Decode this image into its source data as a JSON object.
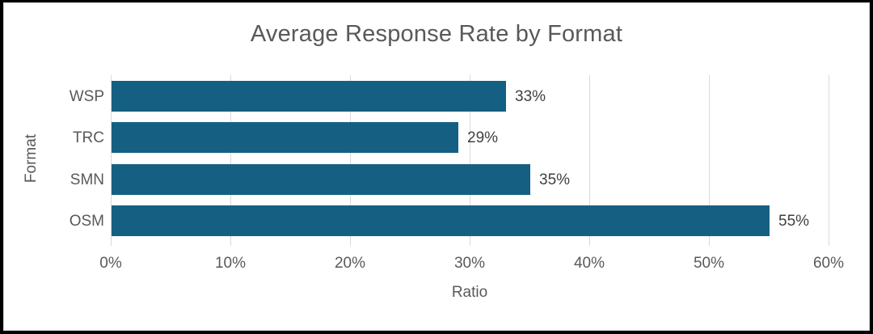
{
  "chart_data": {
    "type": "bar",
    "orientation": "horizontal",
    "title": "Average Response Rate by Format",
    "xlabel": "Ratio",
    "ylabel": "Format",
    "categories": [
      "WSP",
      "TRC",
      "SMN",
      "OSM"
    ],
    "values": [
      33,
      29,
      35,
      55
    ],
    "value_labels": [
      "33%",
      "29%",
      "35%",
      "55%"
    ],
    "x_ticks": [
      "0%",
      "10%",
      "20%",
      "30%",
      "40%",
      "50%",
      "60%"
    ],
    "x_tick_values": [
      0,
      10,
      20,
      30,
      40,
      50,
      60
    ],
    "xlim": [
      0,
      60
    ],
    "grid": "vertical",
    "legend": "none",
    "colors": {
      "bar_fill": "#156082",
      "title_text": "#595959",
      "axis_text": "#595959",
      "data_label_text": "#404040",
      "gridline": "#d9d9d9",
      "chart_background": "#ffffff",
      "frame_border": "#000000"
    }
  }
}
